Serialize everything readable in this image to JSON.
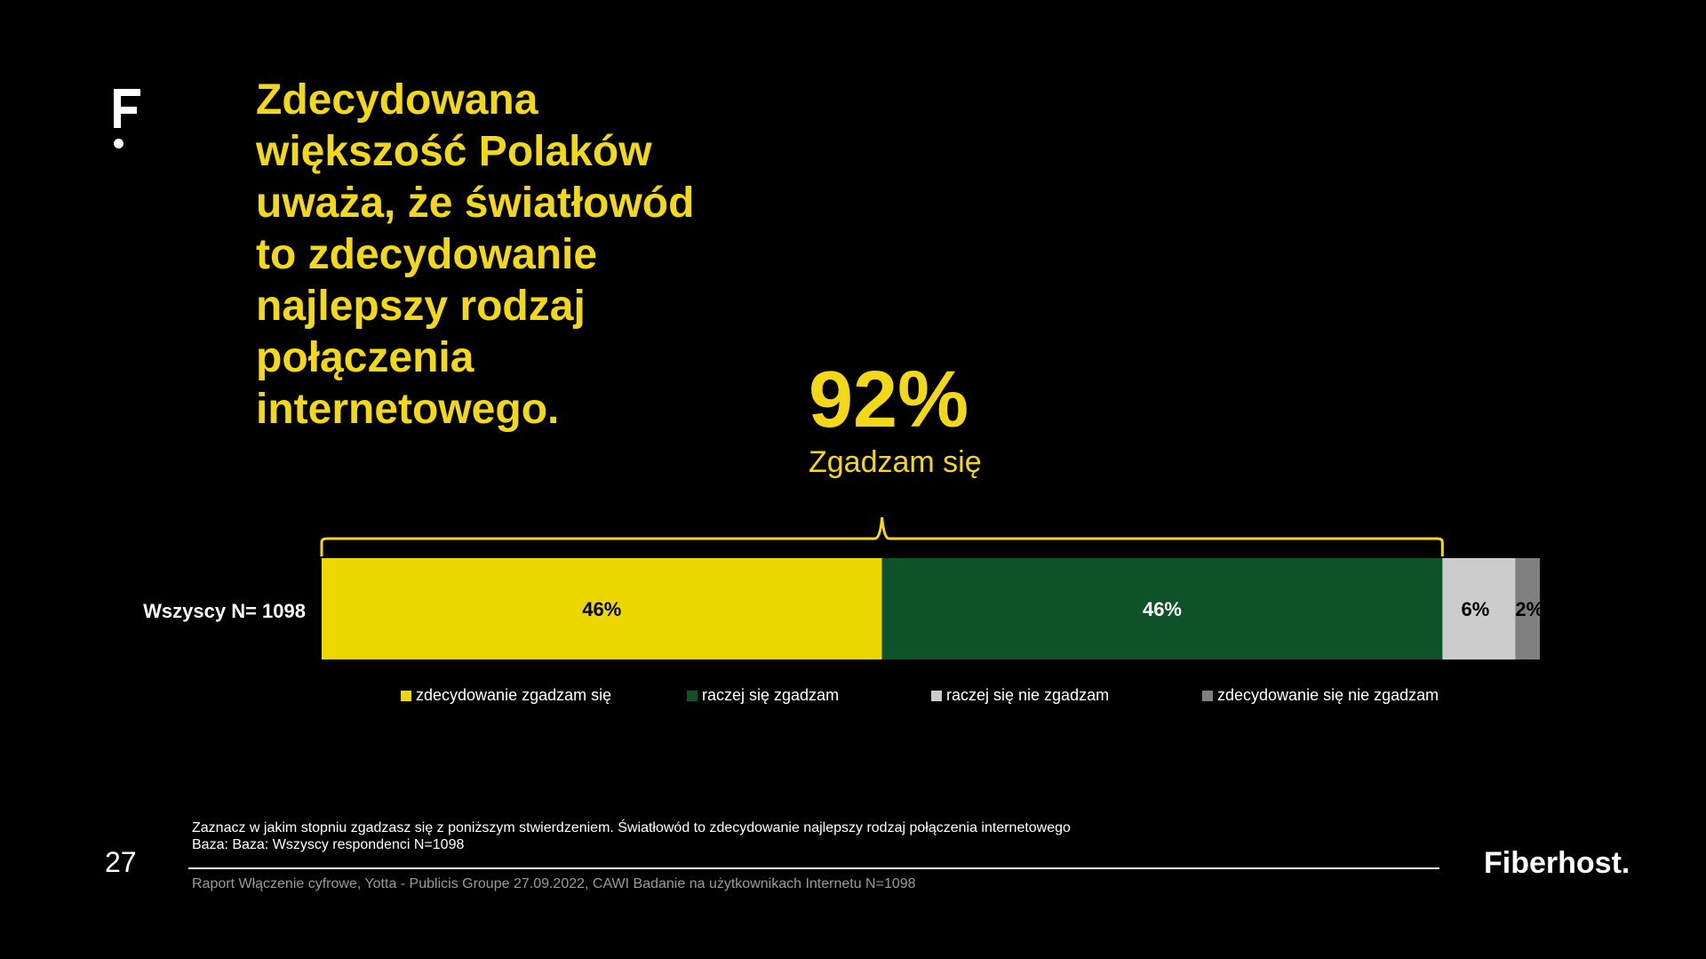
{
  "headline": "Zdecydowana\nwiększość Polaków\nuważa, że światłowód\nto zdecydowanie\nnajlepszy rodzaj\npołączenia\ninternetowego.",
  "highlight": {
    "value": "92%",
    "label": "Zgadzam się"
  },
  "chart_data": {
    "type": "bar",
    "orientation": "horizontal-stacked-100",
    "categories": [
      "Wszyscy N= 1098"
    ],
    "series": [
      {
        "name": "zdecydowanie zgadzam się",
        "values": [
          46
        ],
        "label": "46%",
        "color": "#ECD800",
        "label_color": "#000000"
      },
      {
        "name": "raczej się zgadzam",
        "values": [
          46
        ],
        "label": "46%",
        "color": "#0E5229",
        "label_color": "#ffffff"
      },
      {
        "name": "raczej się nie zgadzam",
        "values": [
          6
        ],
        "label": "6%",
        "color": "#CCCCCC",
        "label_color": "#000000"
      },
      {
        "name": "zdecydowanie się nie zgadzam",
        "values": [
          2
        ],
        "label": "2%",
        "color": "#808080",
        "label_color": "#000000"
      }
    ],
    "legend_position": "bottom",
    "grid": false
  },
  "footer": {
    "question": "Zaznacz w jakim stopniu zgadzasz się z poniższym stwierdzeniem. Światłowód to zdecydowanie najlepszy rodzaj połączenia internetowego",
    "base": "Baza: Baza: Wszyscy respondenci N=1098",
    "page_number": "27",
    "source": "Raport Włączenie cyfrowe, Yotta - Publicis Groupe 27.09.2022, CAWI Badanie na użytkownikach Internetu N=1098",
    "brand": "Fiberhost."
  },
  "colors": {
    "accent": "#F2D816",
    "background": "#000000"
  }
}
